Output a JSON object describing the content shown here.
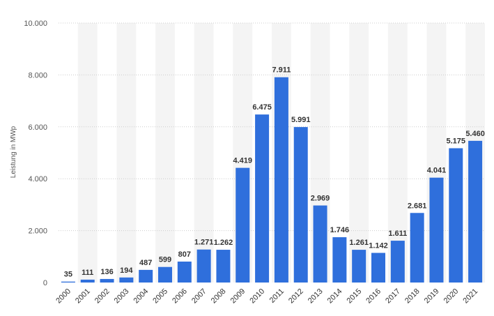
{
  "chart_data": {
    "type": "bar",
    "categories": [
      "2000",
      "2001",
      "2002",
      "2003",
      "2004",
      "2005",
      "2006",
      "2007",
      "2008",
      "2009",
      "2010",
      "2011",
      "2012",
      "2013",
      "2014",
      "2015",
      "2016",
      "2017",
      "2018",
      "2019",
      "2020",
      "2021"
    ],
    "values": [
      35,
      111,
      136,
      194,
      487,
      599,
      807,
      1271,
      1262,
      4419,
      6475,
      7911,
      5991,
      2969,
      1746,
      1261,
      1142,
      1611,
      2681,
      4041,
      5175,
      5460
    ],
    "value_labels": [
      "35",
      "111",
      "136",
      "194",
      "487",
      "599",
      "807",
      "1.271",
      "1.262",
      "4.419",
      "6.475",
      "7.911",
      "5.991",
      "2.969",
      "1.746",
      "1.261",
      "1.142",
      "1.611",
      "2.681",
      "4.041",
      "5.175",
      "5.460"
    ],
    "ylabel": "Leistung in MWp",
    "ylim": [
      0,
      10000
    ],
    "yticks": [
      0,
      2000,
      4000,
      6000,
      8000,
      10000
    ],
    "ytick_labels": [
      "0",
      "2.000",
      "4.000",
      "6.000",
      "8.000",
      "10.000"
    ],
    "grid": true,
    "colors": {
      "bar": "#2f6fdc",
      "band": "#f4f4f4",
      "grid": "#cccccc"
    }
  }
}
